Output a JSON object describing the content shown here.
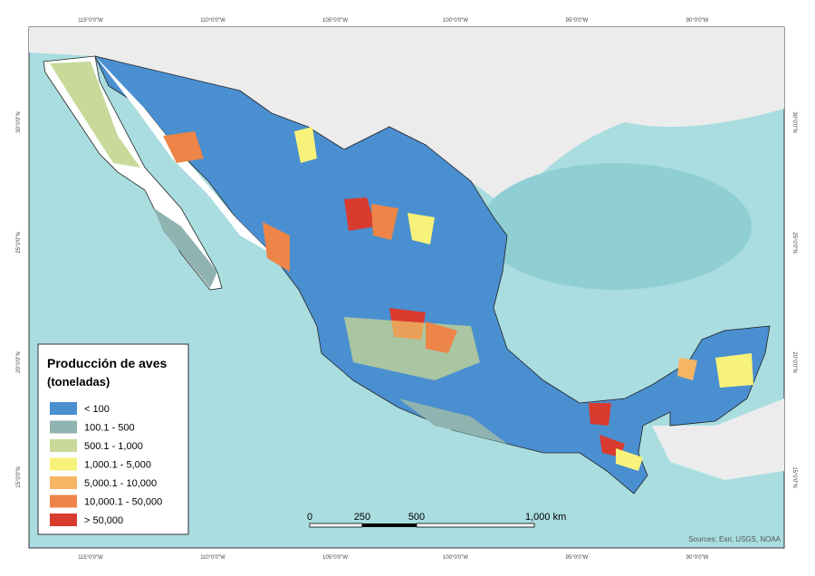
{
  "legend": {
    "title": "Producción de aves",
    "subtitle": "(toneladas)",
    "items": [
      {
        "label": "< 100",
        "color": "#4a8fd0"
      },
      {
        "label": "100.1 - 500",
        "color": "#8fb3b0"
      },
      {
        "label": "500.1 - 1,000",
        "color": "#c8d99a"
      },
      {
        "label": "1,000.1 - 5,000",
        "color": "#f7f27a"
      },
      {
        "label": "5,000.1 - 10,000",
        "color": "#f5b562"
      },
      {
        "label": "10,000.1 - 50,000",
        "color": "#ec8547"
      },
      {
        "label": "> 50,000",
        "color": "#d93b2f"
      }
    ]
  },
  "graticule": {
    "top": [
      "115°0'0\"W",
      "110°0'0\"W",
      "105°0'0\"W",
      "100°0'0\"W",
      "95°0'0\"W",
      "90°0'0\"W"
    ],
    "bottom": [
      "115°0'0\"W",
      "110°0'0\"W",
      "105°0'0\"W",
      "100°0'0\"W",
      "95°0'0\"W",
      "90°0'0\"W"
    ],
    "left": [
      "30°0'0\"N",
      "25°0'0\"N",
      "20°0'0\"N",
      "15°0'0\"N"
    ],
    "right": [
      "30°0'0\"N",
      "25°0'0\"N",
      "20°0'0\"N",
      "15°0'0\"N"
    ]
  },
  "scale_bar": {
    "labels": [
      "0",
      "250",
      "500",
      "1,000 km"
    ]
  },
  "credits": "Sources: Esri, USGS, NOAA"
}
